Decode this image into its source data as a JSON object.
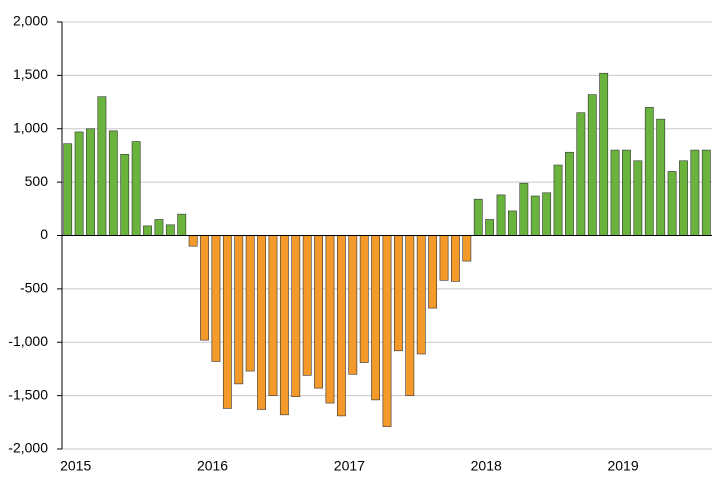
{
  "chart_data": {
    "type": "bar",
    "categories": [
      "2015",
      null,
      null,
      null,
      null,
      null,
      null,
      null,
      null,
      null,
      null,
      null,
      "2016",
      null,
      null,
      null,
      null,
      null,
      null,
      null,
      null,
      null,
      null,
      null,
      "2017",
      null,
      null,
      null,
      null,
      null,
      null,
      null,
      null,
      null,
      null,
      null,
      "2018",
      null,
      null,
      null,
      null,
      null,
      null,
      null,
      null,
      null,
      null,
      null,
      "2019",
      null,
      null,
      null,
      null,
      null,
      null,
      null,
      null
    ],
    "values": [
      860,
      970,
      1000,
      1300,
      980,
      760,
      880,
      90,
      150,
      100,
      200,
      -100,
      -980,
      -1180,
      -1620,
      -1390,
      -1270,
      -1630,
      -1500,
      -1680,
      -1510,
      -1310,
      -1430,
      -1570,
      -1690,
      -1300,
      -1190,
      -1540,
      -1790,
      -1080,
      -1500,
      -1110,
      -680,
      -420,
      -430,
      -240,
      340,
      150,
      380,
      230,
      490,
      370,
      400,
      660,
      780,
      1150,
      1320,
      1520,
      800,
      800,
      700,
      1200,
      1090,
      600,
      700,
      800,
      800
    ],
    "positive_color": "#6ab43e",
    "negative_color": "#f39a2b",
    "ylim": [
      -2000,
      2000
    ],
    "yticks": [
      {
        "value": -2000,
        "label": "-2,000"
      },
      {
        "value": -1500,
        "label": "-1,500"
      },
      {
        "value": -1000,
        "label": "-1,000"
      },
      -500,
      0,
      500,
      {
        "value": 1000,
        "label": "1,000"
      },
      {
        "value": 1500,
        "label": "1,500"
      },
      {
        "value": 2000,
        "label": "2,000"
      }
    ],
    "grid": true
  }
}
